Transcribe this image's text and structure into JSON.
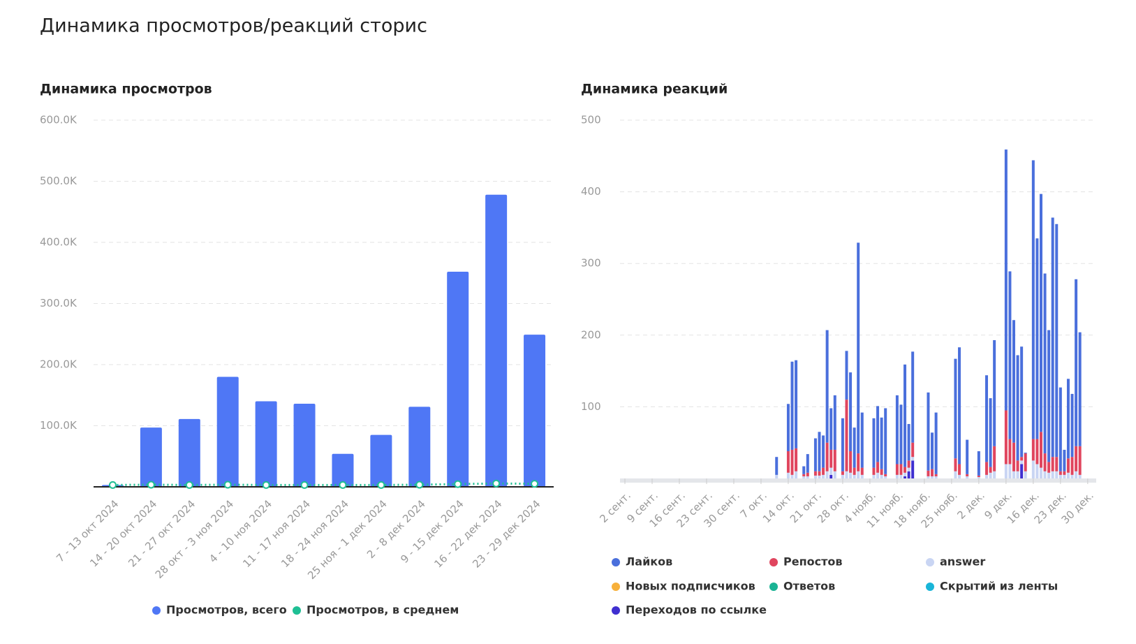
{
  "header": {
    "title": "Динамика просмотров/реакций сторис"
  },
  "chart_data": [
    {
      "type": "bar",
      "title": "Динамика просмотров",
      "categories": [
        "7 - 13 окт 2024",
        "14 - 20 окт 2024",
        "21 - 27 окт 2024",
        "28 окт - 3 ноя 2024",
        "4 - 10 ноя 2024",
        "11 - 17 ноя 2024",
        "18 - 24 ноя 2024",
        "25 ноя - 1 дек 2024",
        "2 - 8 дек 2024",
        "9 - 15 дек 2024",
        "16 - 22 дек 2024",
        "23 - 29 дек 2024"
      ],
      "series": [
        {
          "name": "Просмотров, всего",
          "color": "#4f77f5",
          "type": "bar",
          "values": [
            3000,
            97000,
            111000,
            180000,
            140000,
            136000,
            54000,
            85000,
            131000,
            352000,
            478000,
            249000
          ]
        },
        {
          "name": "Просмотров, в среднем",
          "color": "#1fbf94",
          "type": "line",
          "values": [
            3000,
            3500,
            3000,
            3500,
            3000,
            3000,
            3000,
            3000,
            3500,
            4500,
            5500,
            5000
          ]
        }
      ],
      "ylim": [
        0,
        600000
      ],
      "yticks": [
        {
          "value": 100000,
          "label": "100.0K"
        },
        {
          "value": 200000,
          "label": "200.0K"
        },
        {
          "value": 300000,
          "label": "300.0K"
        },
        {
          "value": 400000,
          "label": "400.0K"
        },
        {
          "value": 500000,
          "label": "500.0K"
        },
        {
          "value": 600000,
          "label": "600.0K"
        }
      ],
      "grid": true
    },
    {
      "type": "stacked_bar",
      "title": "Динамика реакций",
      "categories": [
        "2 сент.",
        null,
        null,
        null,
        null,
        null,
        null,
        "9 сент.",
        null,
        null,
        null,
        null,
        null,
        null,
        "16 сент.",
        null,
        null,
        null,
        null,
        null,
        null,
        "23 сент.",
        null,
        null,
        null,
        null,
        null,
        null,
        "30 сент.",
        null,
        null,
        null,
        null,
        null,
        null,
        "7 окт.",
        null,
        null,
        null,
        null,
        null,
        null,
        "14 окт.",
        null,
        null,
        null,
        null,
        null,
        null,
        "21 окт.",
        null,
        null,
        null,
        null,
        null,
        null,
        "28 окт.",
        null,
        null,
        null,
        null,
        null,
        null,
        "4 нояб.",
        null,
        null,
        null,
        null,
        null,
        null,
        "11 нояб.",
        null,
        null,
        null,
        null,
        null,
        null,
        "18 нояб.",
        null,
        null,
        null,
        null,
        null,
        null,
        "25 нояб.",
        null,
        null,
        null,
        null,
        null,
        null,
        "2 дек.",
        null,
        null,
        null,
        null,
        null,
        null,
        "9 дек.",
        null,
        null,
        null,
        null,
        null,
        null,
        "16 дек.",
        null,
        null,
        null,
        null,
        null,
        null,
        "23 дек.",
        null,
        null,
        null,
        null,
        null,
        null,
        "30 дек."
      ],
      "series": [
        {
          "name": "Лайков",
          "color": "#4a6fdc",
          "values": [
            0,
            0,
            0,
            0,
            0,
            0,
            0,
            0,
            0,
            0,
            0,
            0,
            0,
            0,
            0,
            0,
            0,
            0,
            0,
            0,
            0,
            0,
            0,
            0,
            0,
            0,
            0,
            0,
            0,
            0,
            0,
            0,
            0,
            0,
            0,
            0,
            0,
            0,
            0,
            25,
            0,
            0,
            66,
            123,
            123,
            0,
            11,
            26,
            0,
            46,
            55,
            45,
            157,
            58,
            76,
            0,
            74,
            68,
            110,
            56,
            294,
            77,
            0,
            0,
            69,
            78,
            72,
            92,
            0,
            0,
            96,
            83,
            143,
            51,
            127,
            0,
            0,
            0,
            109,
            51,
            86,
            0,
            0,
            0,
            0,
            139,
            163,
            0,
            48,
            0,
            0,
            34,
            0,
            121,
            96,
            148,
            0,
            0,
            364,
            234,
            171,
            147,
            154,
            1,
            0,
            389,
            280,
            332,
            251,
            184,
            334,
            325,
            117,
            30,
            111,
            88,
            233,
            159,
            0,
            0
          ]
        },
        {
          "name": "Репостов",
          "color": "#e0455e",
          "values": [
            0,
            0,
            0,
            0,
            0,
            0,
            0,
            0,
            0,
            0,
            0,
            0,
            0,
            0,
            0,
            0,
            0,
            0,
            0,
            0,
            0,
            0,
            0,
            0,
            0,
            0,
            0,
            0,
            0,
            0,
            0,
            0,
            0,
            0,
            0,
            0,
            0,
            0,
            0,
            0,
            0,
            0,
            30,
            35,
            32,
            0,
            3,
            5,
            0,
            6,
            6,
            10,
            40,
            25,
            30,
            0,
            5,
            100,
            30,
            10,
            25,
            10,
            0,
            0,
            10,
            15,
            8,
            3,
            0,
            0,
            15,
            15,
            8,
            10,
            20,
            0,
            0,
            0,
            8,
            10,
            3,
            0,
            0,
            0,
            0,
            18,
            15,
            0,
            3,
            0,
            0,
            2,
            0,
            18,
            8,
            35,
            0,
            0,
            75,
            35,
            40,
            15,
            5,
            25,
            0,
            30,
            35,
            50,
            25,
            15,
            20,
            20,
            5,
            5,
            20,
            25,
            35,
            40,
            0,
            0
          ]
        },
        {
          "name": "answer",
          "color": "#c9d5f3",
          "values": [
            0,
            0,
            0,
            0,
            0,
            0,
            0,
            0,
            0,
            0,
            0,
            0,
            0,
            0,
            0,
            0,
            0,
            0,
            0,
            0,
            0,
            0,
            0,
            0,
            0,
            0,
            0,
            0,
            0,
            0,
            0,
            0,
            0,
            0,
            0,
            0,
            0,
            0,
            0,
            5,
            0,
            0,
            8,
            5,
            10,
            0,
            3,
            3,
            0,
            4,
            4,
            5,
            10,
            10,
            10,
            0,
            5,
            10,
            8,
            5,
            10,
            5,
            0,
            0,
            5,
            8,
            5,
            3,
            0,
            0,
            5,
            5,
            5,
            5,
            5,
            0,
            0,
            0,
            3,
            3,
            3,
            0,
            0,
            0,
            0,
            10,
            5,
            0,
            3,
            0,
            0,
            2,
            0,
            5,
            8,
            10,
            0,
            0,
            20,
            20,
            10,
            10,
            5,
            10,
            0,
            25,
            20,
            15,
            10,
            8,
            10,
            10,
            5,
            5,
            8,
            5,
            10,
            5,
            0,
            0
          ]
        },
        {
          "name": "Новых подписчиков",
          "color": "#f7b03a",
          "values": [
            0,
            0,
            0,
            0,
            0,
            0,
            0,
            0,
            0,
            0,
            0,
            0,
            0,
            0,
            0,
            0,
            0,
            0,
            0,
            0,
            0,
            0,
            0,
            0,
            0,
            0,
            0,
            0,
            0,
            0,
            0,
            0,
            0,
            0,
            0,
            0,
            0,
            0,
            0,
            0,
            0,
            0,
            0,
            0,
            0,
            0,
            0,
            0,
            0,
            0,
            0,
            0,
            0,
            0,
            0,
            0,
            0,
            0,
            0,
            0,
            0,
            0,
            0,
            0,
            0,
            0,
            0,
            0,
            0,
            0,
            0,
            0,
            0,
            0,
            0,
            0,
            0,
            0,
            0,
            0,
            0,
            0,
            0,
            0,
            0,
            0,
            0,
            0,
            0,
            0,
            0,
            0,
            0,
            0,
            0,
            0,
            0,
            0,
            0,
            0,
            0,
            0,
            0,
            0,
            0,
            0,
            0,
            0,
            0,
            0,
            0,
            0,
            0,
            0,
            0,
            0,
            0,
            0,
            0,
            0
          ]
        },
        {
          "name": "Ответов",
          "color": "#1ab394",
          "values": [
            0,
            0,
            0,
            0,
            0,
            0,
            0,
            0,
            0,
            0,
            0,
            0,
            0,
            0,
            0,
            0,
            0,
            0,
            0,
            0,
            0,
            0,
            0,
            0,
            0,
            0,
            0,
            0,
            0,
            0,
            0,
            0,
            0,
            0,
            0,
            0,
            0,
            0,
            0,
            0,
            0,
            0,
            0,
            0,
            0,
            0,
            0,
            0,
            0,
            0,
            0,
            0,
            0,
            0,
            0,
            0,
            0,
            0,
            0,
            0,
            0,
            0,
            0,
            0,
            0,
            0,
            0,
            0,
            0,
            0,
            0,
            0,
            0,
            0,
            0,
            0,
            0,
            0,
            0,
            0,
            0,
            0,
            0,
            0,
            0,
            0,
            0,
            0,
            0,
            0,
            0,
            0,
            0,
            0,
            0,
            0,
            0,
            0,
            0,
            0,
            0,
            0,
            0,
            0,
            0,
            0,
            0,
            0,
            0,
            0,
            0,
            0,
            0,
            0,
            0,
            0,
            0,
            0,
            0,
            0
          ]
        },
        {
          "name": "Скрытий из ленты",
          "color": "#19b5d8",
          "values": [
            0,
            0,
            0,
            0,
            0,
            0,
            0,
            0,
            0,
            0,
            0,
            0,
            0,
            0,
            0,
            0,
            0,
            0,
            0,
            0,
            0,
            0,
            0,
            0,
            0,
            0,
            0,
            0,
            0,
            0,
            0,
            0,
            0,
            0,
            0,
            0,
            0,
            0,
            0,
            0,
            0,
            0,
            0,
            0,
            0,
            0,
            0,
            0,
            0,
            0,
            0,
            0,
            0,
            0,
            0,
            0,
            0,
            0,
            0,
            0,
            0,
            0,
            0,
            0,
            0,
            0,
            0,
            0,
            0,
            0,
            0,
            0,
            0,
            0,
            0,
            0,
            0,
            0,
            0,
            0,
            0,
            0,
            0,
            0,
            0,
            0,
            0,
            0,
            0,
            0,
            0,
            0,
            0,
            0,
            0,
            0,
            0,
            0,
            0,
            0,
            0,
            0,
            0,
            0,
            0,
            0,
            0,
            0,
            0,
            0,
            0,
            0,
            0,
            0,
            0,
            0,
            0,
            0,
            0,
            0
          ]
        },
        {
          "name": "Переходов по ссылке",
          "color": "#3f2fd0",
          "values": [
            0,
            0,
            0,
            0,
            0,
            0,
            0,
            0,
            0,
            0,
            0,
            0,
            0,
            0,
            0,
            0,
            0,
            0,
            0,
            0,
            0,
            0,
            0,
            0,
            0,
            0,
            0,
            0,
            0,
            0,
            0,
            0,
            0,
            0,
            0,
            0,
            0,
            0,
            0,
            0,
            0,
            0,
            0,
            0,
            0,
            0,
            0,
            0,
            0,
            0,
            0,
            0,
            0,
            5,
            0,
            0,
            0,
            0,
            0,
            0,
            0,
            0,
            0,
            0,
            0,
            0,
            0,
            0,
            0,
            0,
            0,
            0,
            3,
            10,
            25,
            0,
            0,
            0,
            0,
            0,
            0,
            0,
            0,
            0,
            0,
            0,
            0,
            0,
            0,
            0,
            0,
            0,
            0,
            0,
            0,
            0,
            0,
            0,
            0,
            0,
            0,
            0,
            20,
            0,
            0,
            0,
            0,
            0,
            0,
            0,
            0,
            0,
            0,
            0,
            0,
            0,
            0,
            0,
            0,
            0
          ]
        }
      ],
      "ylim": [
        0,
        500
      ],
      "yticks": [
        100,
        200,
        300,
        400,
        500
      ],
      "grid": true
    }
  ]
}
